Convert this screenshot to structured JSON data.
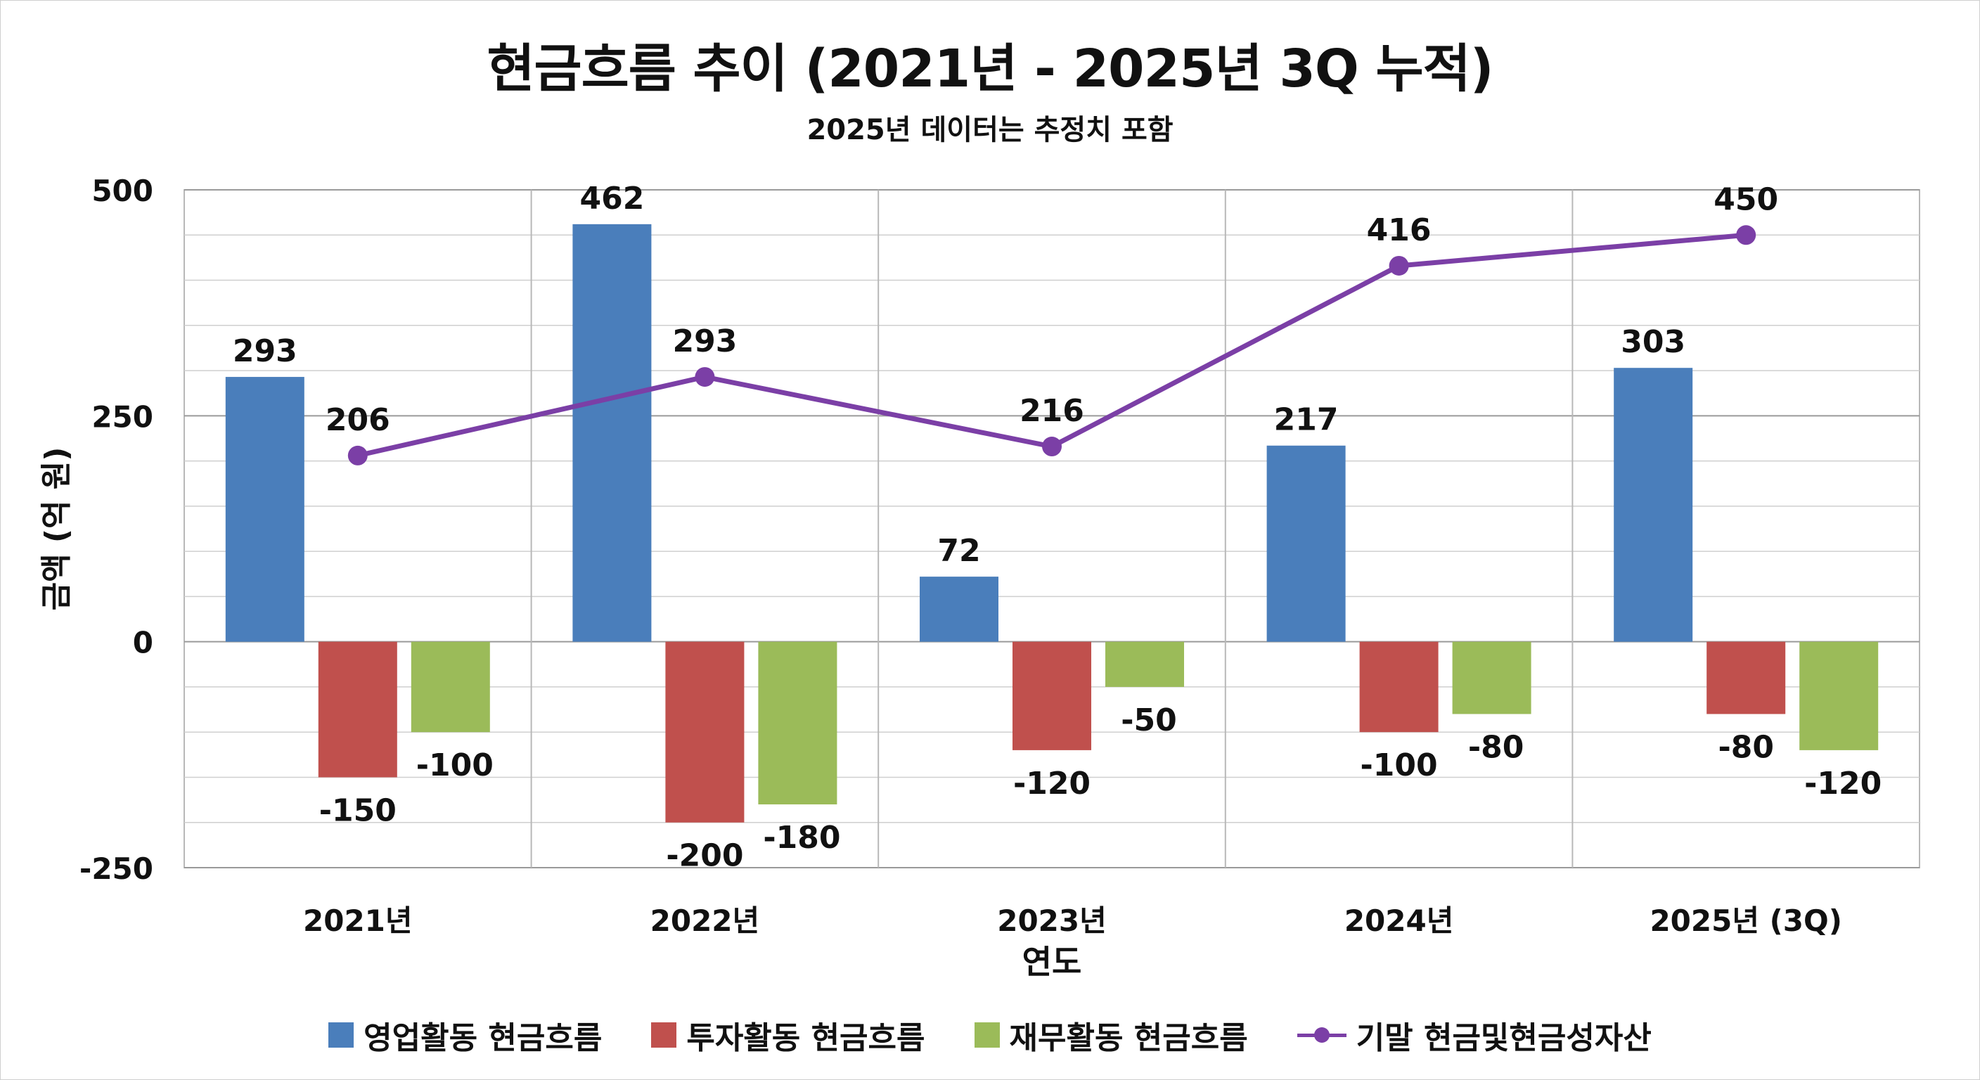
{
  "chart_data": {
    "type": "bar",
    "title": "현금흐름 추이 (2021년 - 2025년 3Q 누적)",
    "subtitle": "2025년 데이터는 추정치 포함",
    "xlabel": "연도",
    "ylabel": "금액 (억 원)",
    "ylim": [
      -250,
      500
    ],
    "yticks": [
      "500",
      "250",
      "0",
      "-250"
    ],
    "ytick_values": [
      500,
      250,
      0,
      -250
    ],
    "grid": true,
    "legend_position": "bottom",
    "categories": [
      "2021년",
      "2022년",
      "2023년",
      "2024년",
      "2025년 (3Q)"
    ],
    "series": [
      {
        "name": "영업활동 현금흐름",
        "kind": "bar",
        "color": "#4a7ebb",
        "values": [
          293,
          462,
          72,
          217,
          303
        ],
        "labels": [
          "293",
          "462",
          "72",
          "217",
          "303"
        ]
      },
      {
        "name": "투자활동 현금흐름",
        "kind": "bar",
        "color": "#c0504d",
        "values": [
          -150,
          -200,
          -120,
          -100,
          -80
        ],
        "labels": [
          "-150",
          "-200",
          "-120",
          "-100",
          "-80"
        ]
      },
      {
        "name": "재무활동 현금흐름",
        "kind": "bar",
        "color": "#9bbb59",
        "values": [
          -100,
          -180,
          -50,
          -80,
          -120
        ],
        "labels": [
          "-100",
          "-180",
          "-50",
          "-80",
          "-120"
        ]
      },
      {
        "name": "기말 현금및현금성자산",
        "kind": "line",
        "color": "#7b3fa6",
        "values": [
          206,
          293,
          216,
          416,
          450
        ],
        "labels": [
          "206",
          "293",
          "216",
          "416",
          "450"
        ]
      }
    ]
  }
}
